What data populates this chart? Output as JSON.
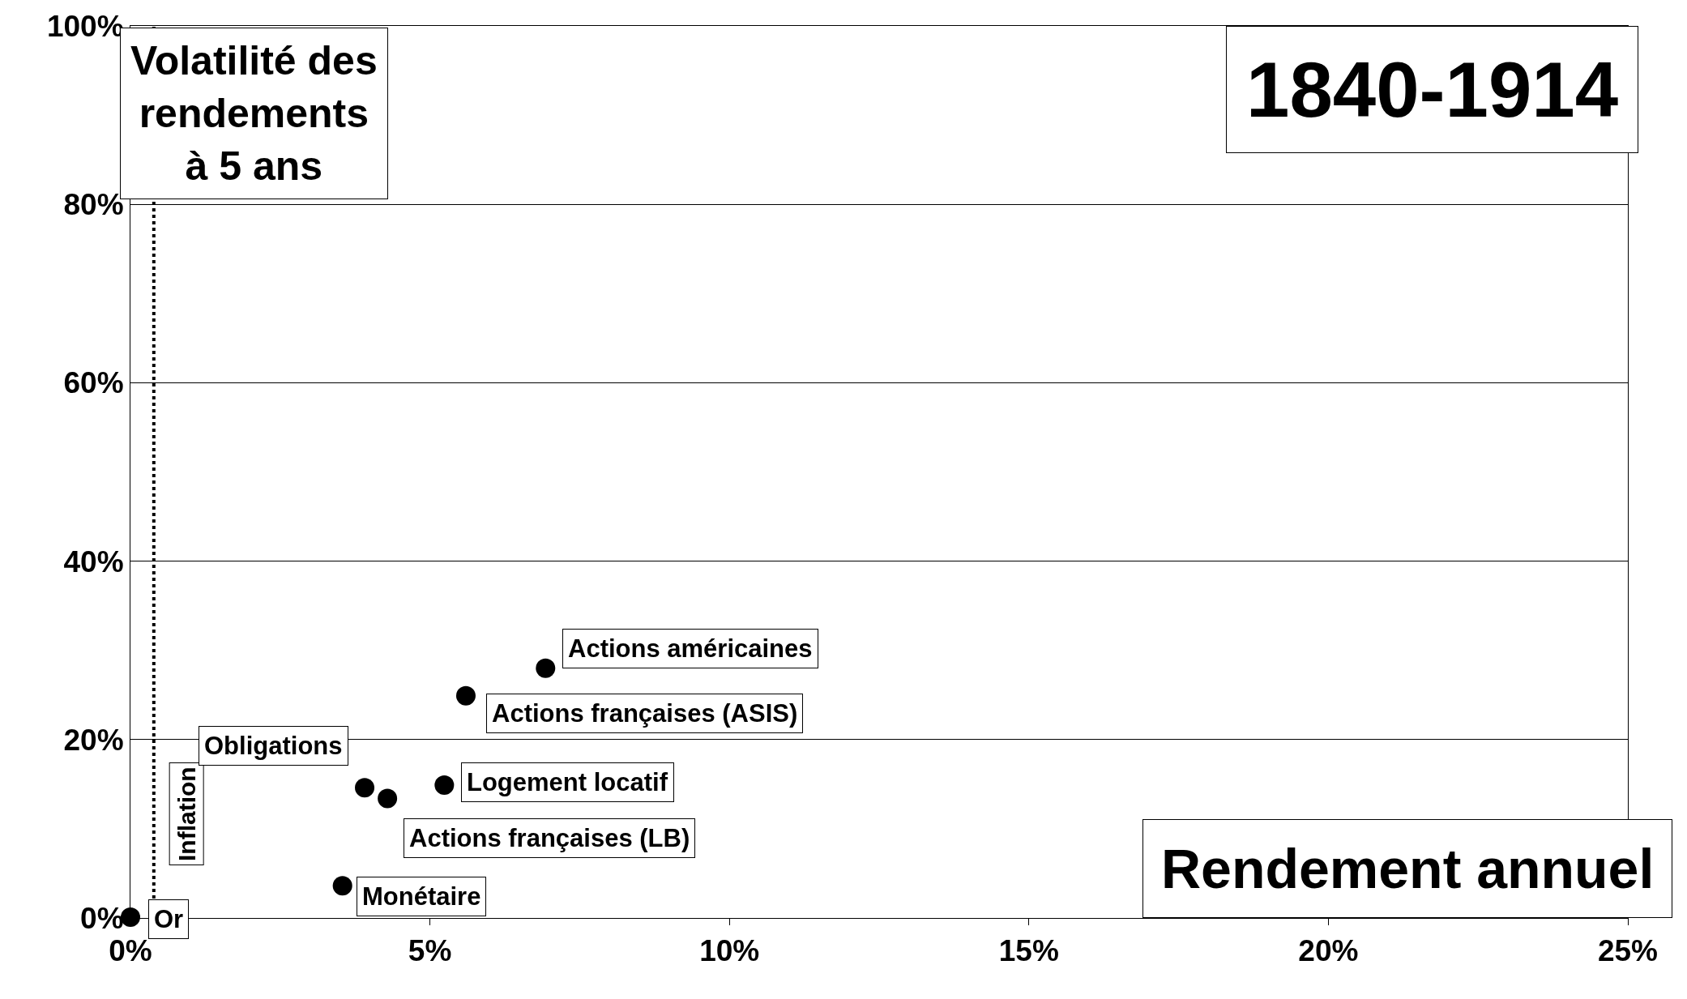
{
  "chart_data": {
    "type": "scatter",
    "title": "1840-1914",
    "xlabel": "Rendement annuel",
    "ylabel": "Volatilité des rendements à 5 ans",
    "x": [
      0,
      3.54,
      3.91,
      4.29,
      5.24,
      5.6,
      6.93
    ],
    "series": [
      {
        "color": "#000000",
        "values": [
          0.1,
          3.6,
          14.6,
          13.4,
          14.9,
          24.9,
          28.0
        ]
      }
    ],
    "marker": "circle",
    "annotations": [
      {
        "text": "Or",
        "x": 0,
        "y": 0.1
      },
      {
        "text": "Monétaire",
        "x": 3.54,
        "y": 3.6
      },
      {
        "text": "Obligations",
        "x": 3.91,
        "y": 14.6
      },
      {
        "text": "Actions françaises (LB)",
        "x": 4.29,
        "y": 13.4
      },
      {
        "text": "Logement locatif",
        "x": 5.24,
        "y": 14.9
      },
      {
        "text": "Actions françaises (ASIS)",
        "x": 5.6,
        "y": 24.9
      },
      {
        "text": "Actions américaines",
        "x": 6.93,
        "y": 28.0
      }
    ],
    "ref_lines": [
      {
        "axis": "x",
        "value": 0.39,
        "label": "Inflation",
        "color": "#000000",
        "line_style": "dotted"
      }
    ],
    "xlim": [
      0,
      25
    ],
    "xticks": [
      {
        "value": 0,
        "label": "0%"
      },
      {
        "value": 5,
        "label": "5%"
      },
      {
        "value": 10,
        "label": "10%"
      },
      {
        "value": 15,
        "label": "15%"
      },
      {
        "value": 20,
        "label": "20%"
      },
      {
        "value": 25,
        "label": "25%"
      }
    ],
    "ylim": [
      0,
      100
    ],
    "yticks": [
      {
        "value": 0,
        "label": "0%"
      },
      {
        "value": 20,
        "label": "20%"
      },
      {
        "value": 40,
        "label": "40%"
      },
      {
        "value": 60,
        "label": "60%"
      },
      {
        "value": 80,
        "label": "80%"
      },
      {
        "value": 100,
        "label": "100%"
      }
    ],
    "grid": "y"
  }
}
